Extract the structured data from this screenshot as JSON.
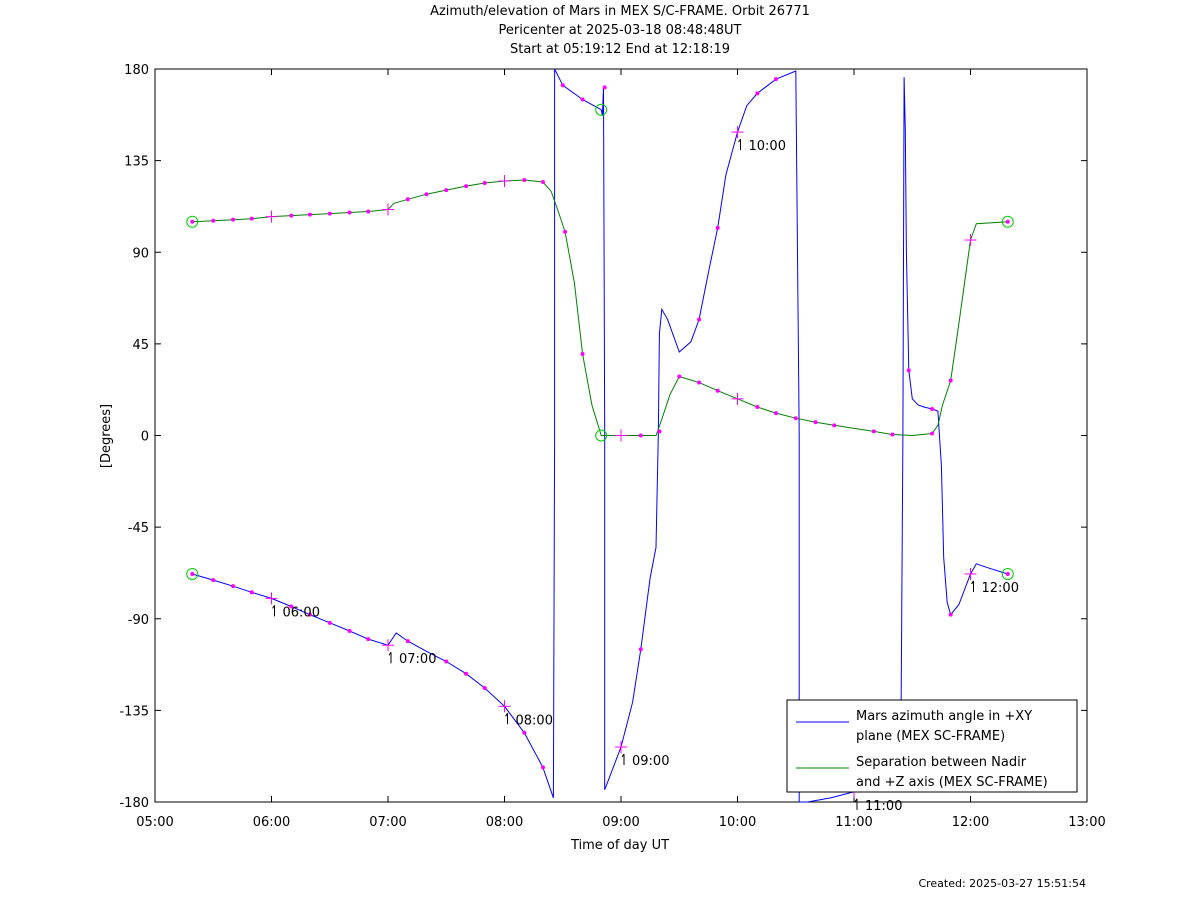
{
  "chart_data": {
    "type": "line",
    "title_lines": [
      "Azimuth/elevation of Mars in MEX S/C-FRAME.  Orbit 26771",
      "Pericenter at 2025-03-18 08:48:48UT",
      "Start at 05:19:12 End at 12:18:19"
    ],
    "xlabel": "Time of day UT",
    "ylabel": "[Degrees]",
    "xlim": [
      5.0,
      13.0
    ],
    "ylim": [
      -180,
      180
    ],
    "x_ticks": [
      {
        "v": 5,
        "label": "05:00"
      },
      {
        "v": 6,
        "label": "06:00"
      },
      {
        "v": 7,
        "label": "07:00"
      },
      {
        "v": 8,
        "label": "08:00"
      },
      {
        "v": 9,
        "label": "09:00"
      },
      {
        "v": 10,
        "label": "10:00"
      },
      {
        "v": 11,
        "label": "11:00"
      },
      {
        "v": 12,
        "label": "12:00"
      },
      {
        "v": 13,
        "label": "13:00"
      }
    ],
    "y_ticks": [
      {
        "v": 180,
        "label": "180"
      },
      {
        "v": 135,
        "label": "135"
      },
      {
        "v": 90,
        "label": "90"
      },
      {
        "v": 45,
        "label": "45"
      },
      {
        "v": 0,
        "label": "0"
      },
      {
        "v": -45,
        "label": "-45"
      },
      {
        "v": -90,
        "label": "-90"
      },
      {
        "v": -135,
        "label": "-135"
      },
      {
        "v": -180,
        "label": "-180"
      }
    ],
    "grid": false,
    "legend_position": "bottom-right",
    "series": [
      {
        "name": "Mars azimuth angle in +XY plane (MEX SC-FRAME)",
        "legend_lines": [
          "Mars azimuth angle in +XY",
          "plane (MEX SC-FRAME)"
        ],
        "color": "#0000ff",
        "x": [
          5.32,
          5.5,
          5.67,
          5.83,
          6.0,
          6.17,
          6.33,
          6.5,
          6.67,
          6.83,
          7.0,
          7.07,
          7.17,
          7.33,
          7.5,
          7.67,
          7.83,
          8.0,
          8.17,
          8.33,
          8.42,
          8.43,
          8.43,
          8.5,
          8.67,
          8.83,
          8.84,
          8.85,
          8.86,
          8.86,
          8.9,
          9.0,
          9.1,
          9.17,
          9.25,
          9.3,
          9.32,
          9.33,
          9.35,
          9.4,
          9.5,
          9.6,
          9.67,
          9.75,
          9.83,
          9.9,
          10.0,
          10.08,
          10.17,
          10.33,
          10.5,
          10.53,
          10.53,
          10.6,
          10.8,
          11.0,
          11.2,
          11.4,
          11.42,
          11.43,
          11.44,
          11.45,
          11.47,
          11.5,
          11.55,
          11.6,
          11.67,
          11.72,
          11.75,
          11.77,
          11.8,
          11.83,
          11.9,
          12.0,
          12.05,
          12.15,
          12.32
        ],
        "y": [
          -68,
          -71,
          -74,
          -77,
          -80,
          -84,
          -88,
          -92,
          -96,
          -100,
          -103,
          -97,
          -101,
          -106,
          -111,
          -117,
          -124,
          -133,
          -146,
          -163,
          -178,
          0,
          180,
          172,
          165,
          160,
          157,
          171,
          0,
          -174,
          -168,
          -153,
          -131,
          -105,
          -70,
          -55,
          0,
          50,
          62,
          57,
          41,
          46,
          57,
          80,
          102,
          128,
          149,
          162,
          168,
          175,
          179,
          0,
          -180,
          -180,
          -178,
          -175,
          -173,
          -172,
          0,
          176,
          150,
          90,
          32,
          18,
          15,
          14,
          13,
          12,
          -15,
          -60,
          -82,
          -88,
          -83,
          -68,
          -63,
          -65,
          -68
        ]
      },
      {
        "name": "Separation between Nadir and +Z axis (MEX SC-FRAME)",
        "legend_lines": [
          "Separation between Nadir",
          "and +Z axis (MEX SC-FRAME)"
        ],
        "color": "#008000",
        "x": [
          5.32,
          5.5,
          5.67,
          5.83,
          6.0,
          6.17,
          6.33,
          6.5,
          6.67,
          6.83,
          7.0,
          7.05,
          7.17,
          7.33,
          7.5,
          7.67,
          7.83,
          8.0,
          8.17,
          8.33,
          8.4,
          8.45,
          8.52,
          8.6,
          8.67,
          8.75,
          8.82,
          8.83,
          9.0,
          9.17,
          9.3,
          9.35,
          9.42,
          9.5,
          9.67,
          9.83,
          10.0,
          10.17,
          10.33,
          10.5,
          10.67,
          10.83,
          11.0,
          11.17,
          11.33,
          11.5,
          11.67,
          11.72,
          11.76,
          11.83,
          11.9,
          12.0,
          12.05,
          12.32
        ],
        "y": [
          105,
          105.5,
          106,
          106.5,
          107.5,
          108,
          108.5,
          109,
          109.5,
          110,
          111,
          114,
          116,
          118.5,
          120.5,
          122.5,
          124,
          125,
          125.5,
          124.5,
          120,
          112,
          100,
          75,
          40,
          15,
          2,
          0,
          0,
          0,
          0,
          8,
          20,
          29,
          26,
          22,
          18,
          14,
          11,
          8.5,
          6.5,
          5,
          3.5,
          2,
          0.5,
          0,
          1,
          5,
          15,
          27,
          55,
          96,
          104,
          105
        ]
      }
    ],
    "points": [
      {
        "x": 5.32,
        "y": 105
      },
      {
        "x": 5.5,
        "y": 105.5
      },
      {
        "x": 5.67,
        "y": 106
      },
      {
        "x": 5.83,
        "y": 106.5
      },
      {
        "x": 6.17,
        "y": 108
      },
      {
        "x": 6.33,
        "y": 108.5
      },
      {
        "x": 6.5,
        "y": 109
      },
      {
        "x": 6.67,
        "y": 109.5
      },
      {
        "x": 6.83,
        "y": 110
      },
      {
        "x": 7.17,
        "y": 116
      },
      {
        "x": 7.33,
        "y": 118.5
      },
      {
        "x": 7.5,
        "y": 120.5
      },
      {
        "x": 7.67,
        "y": 122.5
      },
      {
        "x": 7.83,
        "y": 124
      },
      {
        "x": 8.17,
        "y": 125.5
      },
      {
        "x": 8.33,
        "y": 124.5
      },
      {
        "x": 8.52,
        "y": 100
      },
      {
        "x": 8.67,
        "y": 40
      },
      {
        "x": 9.17,
        "y": 0
      },
      {
        "x": 9.33,
        "y": 2
      },
      {
        "x": 9.5,
        "y": 29
      },
      {
        "x": 9.67,
        "y": 26
      },
      {
        "x": 9.83,
        "y": 22
      },
      {
        "x": 10.17,
        "y": 14
      },
      {
        "x": 10.33,
        "y": 11
      },
      {
        "x": 10.5,
        "y": 8.5
      },
      {
        "x": 10.67,
        "y": 6.5
      },
      {
        "x": 10.83,
        "y": 5
      },
      {
        "x": 11.17,
        "y": 2
      },
      {
        "x": 11.33,
        "y": 0.5
      },
      {
        "x": 11.67,
        "y": 1
      },
      {
        "x": 11.83,
        "y": 27
      },
      {
        "x": 12.32,
        "y": 105
      },
      {
        "x": 5.32,
        "y": -68
      },
      {
        "x": 5.5,
        "y": -71
      },
      {
        "x": 5.67,
        "y": -74
      },
      {
        "x": 5.83,
        "y": -77
      },
      {
        "x": 6.17,
        "y": -84
      },
      {
        "x": 6.33,
        "y": -88
      },
      {
        "x": 6.5,
        "y": -92
      },
      {
        "x": 6.67,
        "y": -96
      },
      {
        "x": 6.83,
        "y": -100
      },
      {
        "x": 7.17,
        "y": -101
      },
      {
        "x": 7.5,
        "y": -111
      },
      {
        "x": 7.67,
        "y": -117
      },
      {
        "x": 7.83,
        "y": -124
      },
      {
        "x": 8.17,
        "y": -146
      },
      {
        "x": 8.33,
        "y": -163
      },
      {
        "x": 8.5,
        "y": 172
      },
      {
        "x": 8.67,
        "y": 165
      },
      {
        "x": 8.86,
        "y": 171
      },
      {
        "x": 9.17,
        "y": -105
      },
      {
        "x": 9.67,
        "y": 57
      },
      {
        "x": 9.83,
        "y": 102
      },
      {
        "x": 10.17,
        "y": 168
      },
      {
        "x": 10.33,
        "y": 175
      },
      {
        "x": 11.47,
        "y": 32
      },
      {
        "x": 11.67,
        "y": 13
      },
      {
        "x": 11.83,
        "y": -88
      },
      {
        "x": 12.32,
        "y": -68
      }
    ],
    "hour_markers": [
      {
        "x": 6.0,
        "y": -80,
        "label": "06:00"
      },
      {
        "x": 7.0,
        "y": -103,
        "label": "07:00"
      },
      {
        "x": 8.0,
        "y": -133,
        "label": "08:00"
      },
      {
        "x": 9.0,
        "y": -153,
        "label": "09:00"
      },
      {
        "x": 10.0,
        "y": 149,
        "label": "10:00"
      },
      {
        "x": 11.0,
        "y": -175,
        "label": "11:00"
      },
      {
        "x": 12.0,
        "y": -68,
        "label": "12:00"
      }
    ],
    "plain_markers": [
      {
        "x": 6.0,
        "y": 107.5
      },
      {
        "x": 7.0,
        "y": 111
      },
      {
        "x": 8.0,
        "y": 125
      },
      {
        "x": 9.0,
        "y": 0
      },
      {
        "x": 10.0,
        "y": 18
      },
      {
        "x": 12.0,
        "y": 96
      }
    ],
    "circle_markers": [
      {
        "x": 5.32,
        "y": 105
      },
      {
        "x": 5.32,
        "y": -68
      },
      {
        "x": 8.83,
        "y": 160
      },
      {
        "x": 8.83,
        "y": 0
      },
      {
        "x": 12.32,
        "y": 105
      },
      {
        "x": 12.32,
        "y": -68
      }
    ]
  },
  "footer": {
    "created": "Created: 2025-03-27 15:51:54"
  }
}
